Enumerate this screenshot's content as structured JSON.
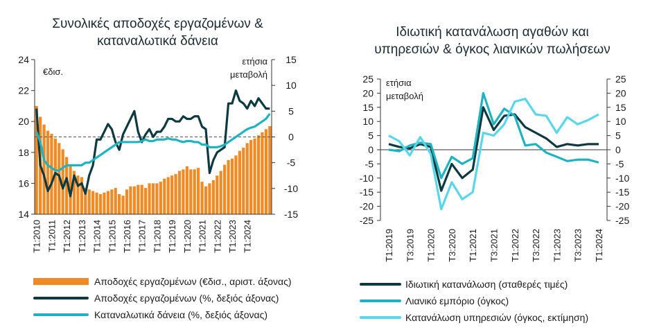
{
  "chart_data": [
    {
      "type": "bar+line",
      "title": "Συνολικές αποδοχές εργαζομένων & καταναλωτικά δάνεια",
      "left_axis_label": "€δισ.",
      "right_axis_label": "ετήσια μεταβολή",
      "left_ylim": [
        14,
        24
      ],
      "left_yticks": [
        14,
        16,
        18,
        20,
        22,
        24
      ],
      "right_ylim": [
        -15,
        15
      ],
      "right_yticks": [
        -15,
        -10,
        -5,
        0,
        5,
        10,
        15
      ],
      "xticks": [
        "T1:2010",
        "T1:2011",
        "T1:2012",
        "T1:2013",
        "T1:2014",
        "T1:2015",
        "T1:2016",
        "T1:2017",
        "T1:2018",
        "T1:2019",
        "T1:2020",
        "T1:2021",
        "T1:2022",
        "T1:2023",
        "T1:2024"
      ],
      "legend_position": "bottom",
      "colors": {
        "bars": "#f08a24",
        "wages_yoy": "#0d3a40",
        "loans_yoy": "#1fb3c0"
      },
      "series": [
        {
          "name": "Αποδοχές εργαζομένων (€δισ., αριστ. άξονας)",
          "kind": "bar",
          "axis": "left",
          "values": [
            21.0,
            20.3,
            19.8,
            19.4,
            19.2,
            18.9,
            18.6,
            18.2,
            17.7,
            17.2,
            16.8,
            16.5,
            16.4,
            15.7,
            15.6,
            15.5,
            15.4,
            15.3,
            15.4,
            15.5,
            15.6,
            15.7,
            15.3,
            15.2,
            15.6,
            15.8,
            15.8,
            15.9,
            15.9,
            15.7,
            16.0,
            16.0,
            16.0,
            16.1,
            16.3,
            16.4,
            16.5,
            16.6,
            16.8,
            16.9,
            17.1,
            16.9,
            16.9,
            17.0,
            16.1,
            15.8,
            16.0,
            16.2,
            16.5,
            16.8,
            17.2,
            17.5,
            17.6,
            17.8,
            18.1,
            18.3,
            18.6,
            18.8,
            18.9,
            19.1,
            19.3,
            19.5,
            19.7
          ]
        },
        {
          "name": "Αποδοχές εργαζομένων (%, δεξιός άξονας)",
          "kind": "line",
          "axis": "right",
          "values": [
            5.5,
            -5.5,
            -7.5,
            -10.5,
            -9.0,
            -7.0,
            -7.5,
            -10.0,
            -8.0,
            -11.5,
            -7.5,
            -9.5,
            -9.0,
            -11.0,
            -7.5,
            -5.5,
            -0.5,
            -0.5,
            1.0,
            2.5,
            1.5,
            -1.0,
            -2.5,
            0.5,
            2.0,
            3.5,
            5.0,
            1.0,
            -1.0,
            0.5,
            1.5,
            0.0,
            1.0,
            1.0,
            2.0,
            3.5,
            3.5,
            3.0,
            3.0,
            4.0,
            3.5,
            3.5,
            4.0,
            4.0,
            2.0,
            1.5,
            -7.0,
            -4.5,
            -3.0,
            -2.5,
            -2.0,
            6.5,
            6.5,
            9.0,
            7.0,
            6.5,
            5.5,
            7.0,
            6.0,
            7.5,
            6.5,
            5.5,
            5.5
          ]
        },
        {
          "name": "Καταναλωτικά δάνεια (%, δεξιός άξονας)",
          "kind": "line",
          "axis": "right",
          "values": [
            1.0,
            -1.0,
            -4.5,
            -5.5,
            -6.0,
            -6.5,
            -6.5,
            -6.0,
            -5.5,
            -5.5,
            -5.5,
            -5.5,
            -5.5,
            -5.0,
            -5.0,
            -4.5,
            -4.0,
            -3.5,
            -3.0,
            -2.5,
            -2.0,
            -1.5,
            -1.0,
            -1.0,
            -1.0,
            -1.0,
            -1.0,
            -1.0,
            -0.8,
            -0.5,
            -0.8,
            -0.8,
            -0.5,
            -0.5,
            -0.5,
            -0.3,
            -0.5,
            -0.5,
            -0.8,
            -1.0,
            -0.8,
            -0.8,
            -1.0,
            -1.0,
            -1.5,
            -1.5,
            -2.0,
            -2.0,
            -2.0,
            -1.8,
            -1.5,
            -1.0,
            -0.5,
            0.0,
            0.5,
            1.0,
            1.5,
            1.8,
            2.0,
            2.5,
            3.0,
            3.5,
            4.5
          ]
        }
      ]
    },
    {
      "type": "line",
      "title": "Ιδιωτική κατανάλωση αγαθών και υπηρεσιών & όγκος λιανικών πωλήσεων",
      "left_axis_label": "ετήσια μεταβολή",
      "ylim": [
        -25,
        25
      ],
      "yticks": [
        -25,
        -20,
        -15,
        -10,
        -5,
        0,
        5,
        10,
        15,
        20,
        25
      ],
      "xticks": [
        "T1:2019",
        "T3:2019",
        "T1:2020",
        "T3:2020",
        "T1:2021",
        "T3:2021",
        "T1:2022",
        "T3:2022",
        "T1:2023",
        "T3:2023",
        "T1:2024"
      ],
      "legend_position": "bottom",
      "colors": {
        "private_consumption": "#0d3a40",
        "retail": "#1fb3c0",
        "services": "#5ad6e8"
      },
      "series": [
        {
          "name": "Ιδιωτική κατανάλωση (σταθερές τιμές)",
          "values": [
            2.0,
            1.0,
            0.5,
            2.0,
            1.0,
            -14.5,
            -5.0,
            -10.0,
            -7.0,
            15.0,
            7.0,
            12.0,
            12.5,
            8.0,
            6.0,
            4.0,
            1.0,
            2.0,
            1.5,
            2.0,
            2.0
          ]
        },
        {
          "name": "Λιανικό εμπόριο (όγκος)",
          "values": [
            0.0,
            -0.5,
            1.5,
            2.5,
            2.0,
            -10.0,
            -2.5,
            -5.0,
            -3.0,
            20.0,
            9.0,
            14.5,
            12.0,
            1.5,
            2.0,
            -1.0,
            -2.5,
            -4.0,
            -3.5,
            -3.5,
            -4.5
          ]
        },
        {
          "name": "Κατανάλωση υπηρεσιών (όγκος, εκτίμηση)",
          "values": [
            5.0,
            3.0,
            -2.0,
            4.5,
            -1.5,
            -21.0,
            -11.5,
            -17.5,
            -15.0,
            6.0,
            5.0,
            9.0,
            17.0,
            18.0,
            12.5,
            12.0,
            6.0,
            11.5,
            9.0,
            10.5,
            12.5
          ]
        }
      ]
    }
  ]
}
